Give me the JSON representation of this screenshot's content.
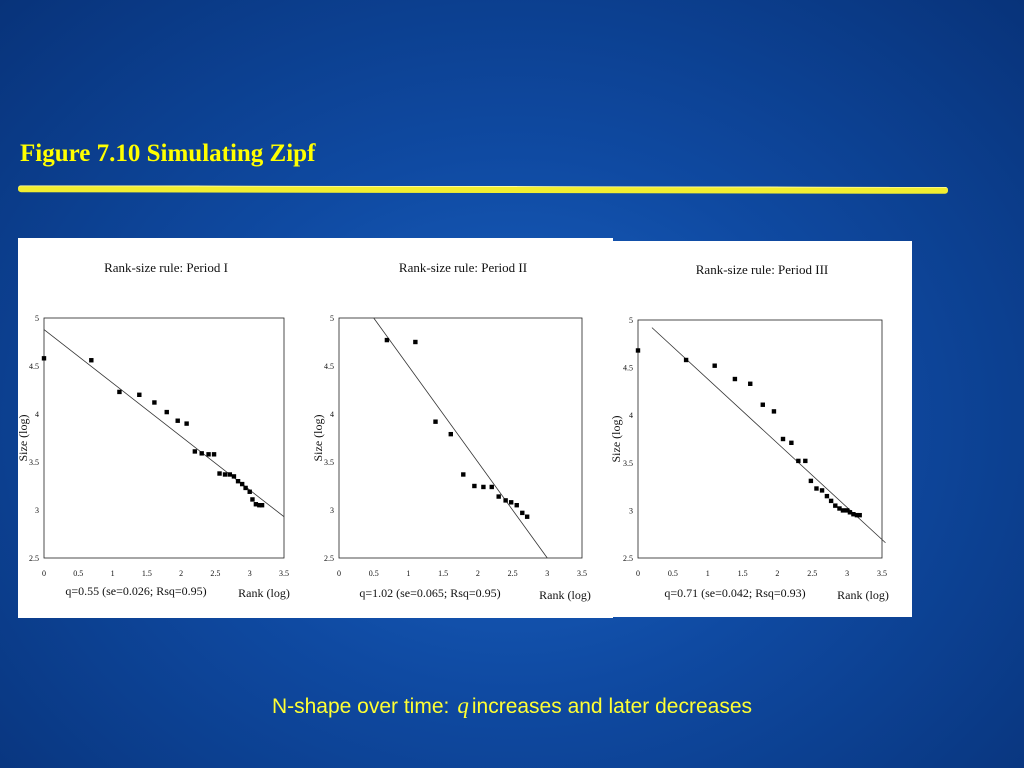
{
  "slide": {
    "title": "Figure 7.10  Simulating Zipf",
    "caption_prefix": "N-shape over time:",
    "caption_var": "q",
    "caption_suffix": "increases and later decreases"
  },
  "chart_data": [
    {
      "type": "scatter",
      "title": "Rank-size rule: Period I",
      "xlabel": "Rank (log)",
      "ylabel": "Size (log)",
      "xlim": [
        0,
        3.5
      ],
      "ylim": [
        2.5,
        5
      ],
      "x_ticks": [
        "0",
        "0.5",
        "1",
        "1.5",
        "2",
        "2.5",
        "3",
        "3.5"
      ],
      "y_ticks": [
        "2.5",
        "3",
        "3.5",
        "4",
        "4.5",
        "5"
      ],
      "fit_note": "q=0.55 (se=0.026; Rsq=0.95)",
      "grid": false,
      "trend": {
        "x": [
          0,
          3.5
        ],
        "y": [
          4.88,
          2.93
        ]
      },
      "points": {
        "x": [
          0,
          0.69,
          1.1,
          1.39,
          1.61,
          1.79,
          1.95,
          2.08,
          2.2,
          2.3,
          2.4,
          2.48,
          2.56,
          2.64,
          2.71,
          2.77,
          2.83,
          2.89,
          2.94,
          3.0,
          3.04,
          3.09,
          3.14,
          3.18
        ],
        "y": [
          4.58,
          4.56,
          4.23,
          4.2,
          4.12,
          4.02,
          3.93,
          3.9,
          3.61,
          3.59,
          3.58,
          3.58,
          3.38,
          3.37,
          3.37,
          3.35,
          3.3,
          3.27,
          3.23,
          3.19,
          3.11,
          3.06,
          3.05,
          3.05
        ]
      }
    },
    {
      "type": "scatter",
      "title": "Rank-size rule: Period II",
      "xlabel": "Rank (log)",
      "ylabel": "Size (log)",
      "xlim": [
        0,
        3.5
      ],
      "ylim": [
        2.5,
        5
      ],
      "x_ticks": [
        "0",
        "0.5",
        "1",
        "1.5",
        "2",
        "2.5",
        "3",
        "3.5"
      ],
      "y_ticks": [
        "2.5",
        "3",
        "3.5",
        "4",
        "4.5",
        "5"
      ],
      "fit_note": "q=1.02 (se=0.065; Rsq=0.95)",
      "grid": false,
      "trend": {
        "x": [
          0.5,
          3.0
        ],
        "y": [
          5.0,
          2.5
        ]
      },
      "points": {
        "x": [
          0.69,
          1.1,
          1.39,
          1.61,
          1.79,
          1.95,
          2.08,
          2.2,
          2.3,
          2.4,
          2.48,
          2.56,
          2.64,
          2.71
        ],
        "y": [
          4.77,
          4.75,
          3.92,
          3.79,
          3.37,
          3.25,
          3.24,
          3.24,
          3.14,
          3.1,
          3.08,
          3.05,
          2.97,
          2.93
        ]
      }
    },
    {
      "type": "scatter",
      "title": "Rank-size rule: Period III",
      "xlabel": "Rank (log)",
      "ylabel": "Size (log)",
      "xlim": [
        0,
        3.5
      ],
      "ylim": [
        2.5,
        5
      ],
      "x_ticks": [
        "0",
        "0.5",
        "1",
        "1.5",
        "2",
        "2.5",
        "3",
        "3.5"
      ],
      "y_ticks": [
        "2.5",
        "3",
        "3.5",
        "4",
        "4.5",
        "5"
      ],
      "fit_note": "q=0.71 (se=0.042; Rsq=0.93)",
      "grid": false,
      "trend": {
        "x": [
          0.2,
          3.55
        ],
        "y": [
          4.92,
          2.66
        ]
      },
      "points": {
        "x": [
          0,
          0.69,
          1.1,
          1.39,
          1.61,
          1.79,
          1.95,
          2.08,
          2.2,
          2.3,
          2.4,
          2.48,
          2.56,
          2.64,
          2.71,
          2.77,
          2.83,
          2.89,
          2.94,
          3.0,
          3.04,
          3.09,
          3.14,
          3.18
        ],
        "y": [
          4.68,
          4.58,
          4.52,
          4.38,
          4.33,
          4.11,
          4.04,
          3.75,
          3.71,
          3.52,
          3.52,
          3.31,
          3.23,
          3.21,
          3.15,
          3.1,
          3.05,
          3.02,
          3.0,
          3.0,
          2.98,
          2.96,
          2.95,
          2.95
        ]
      }
    }
  ]
}
